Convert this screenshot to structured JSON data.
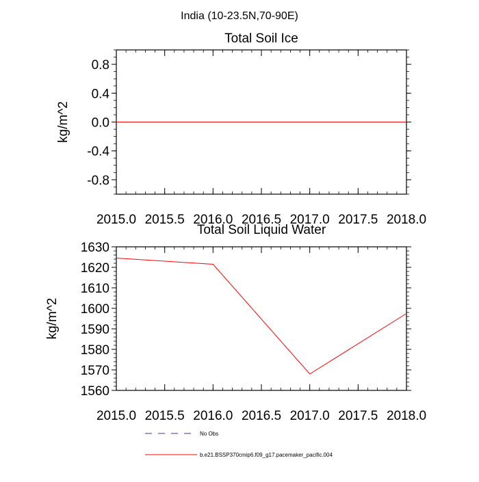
{
  "suptitle": "India (10-23.5N,70-90E)",
  "colors": {
    "model": "#ff0000",
    "obs": "#3333aa",
    "axis": "#000000"
  },
  "legend": {
    "entries": [
      {
        "label": "No Obs",
        "style": "dashed",
        "color": "#3333aa"
      },
      {
        "label": "b.e21.BSSP370cmip6.f09_g17.pacemaker_pacific.004",
        "style": "solid",
        "color": "#ff0000"
      }
    ]
  },
  "chart_data": [
    {
      "type": "line",
      "title": "Total Soil Ice",
      "xlabel": "",
      "ylabel": "kg/m^2",
      "xlim": [
        2015.0,
        2018.0
      ],
      "ylim": [
        -1.0,
        1.0
      ],
      "xticks": [
        "2015.0",
        "2015.5",
        "2016.0",
        "2016.5",
        "2017.0",
        "2017.5",
        "2018.0"
      ],
      "yticks": [
        "0.8",
        "0.4",
        "0.0",
        "-0.4",
        "-0.8"
      ],
      "series": [
        {
          "x": [
            2015.0,
            2016.0,
            2017.0,
            2018.0
          ],
          "values": [
            0.0,
            0.0,
            0.0,
            0.0
          ],
          "color": "#ff0000"
        }
      ]
    },
    {
      "type": "line",
      "title": "Total Soil Liquid Water",
      "xlabel": "",
      "ylabel": "kg/m^2",
      "xlim": [
        2015.0,
        2018.0
      ],
      "ylim": [
        1560,
        1630
      ],
      "xticks": [
        "2015.0",
        "2015.5",
        "2016.0",
        "2016.5",
        "2017.0",
        "2017.5",
        "2018.0"
      ],
      "yticks": [
        "1630",
        "1620",
        "1610",
        "1600",
        "1590",
        "1580",
        "1570",
        "1560"
      ],
      "series": [
        {
          "x": [
            2015.0,
            2016.0,
            2017.0,
            2018.0
          ],
          "values": [
            1624.5,
            1621.5,
            1568.0,
            1597.5
          ],
          "color": "#ff0000"
        }
      ]
    }
  ]
}
